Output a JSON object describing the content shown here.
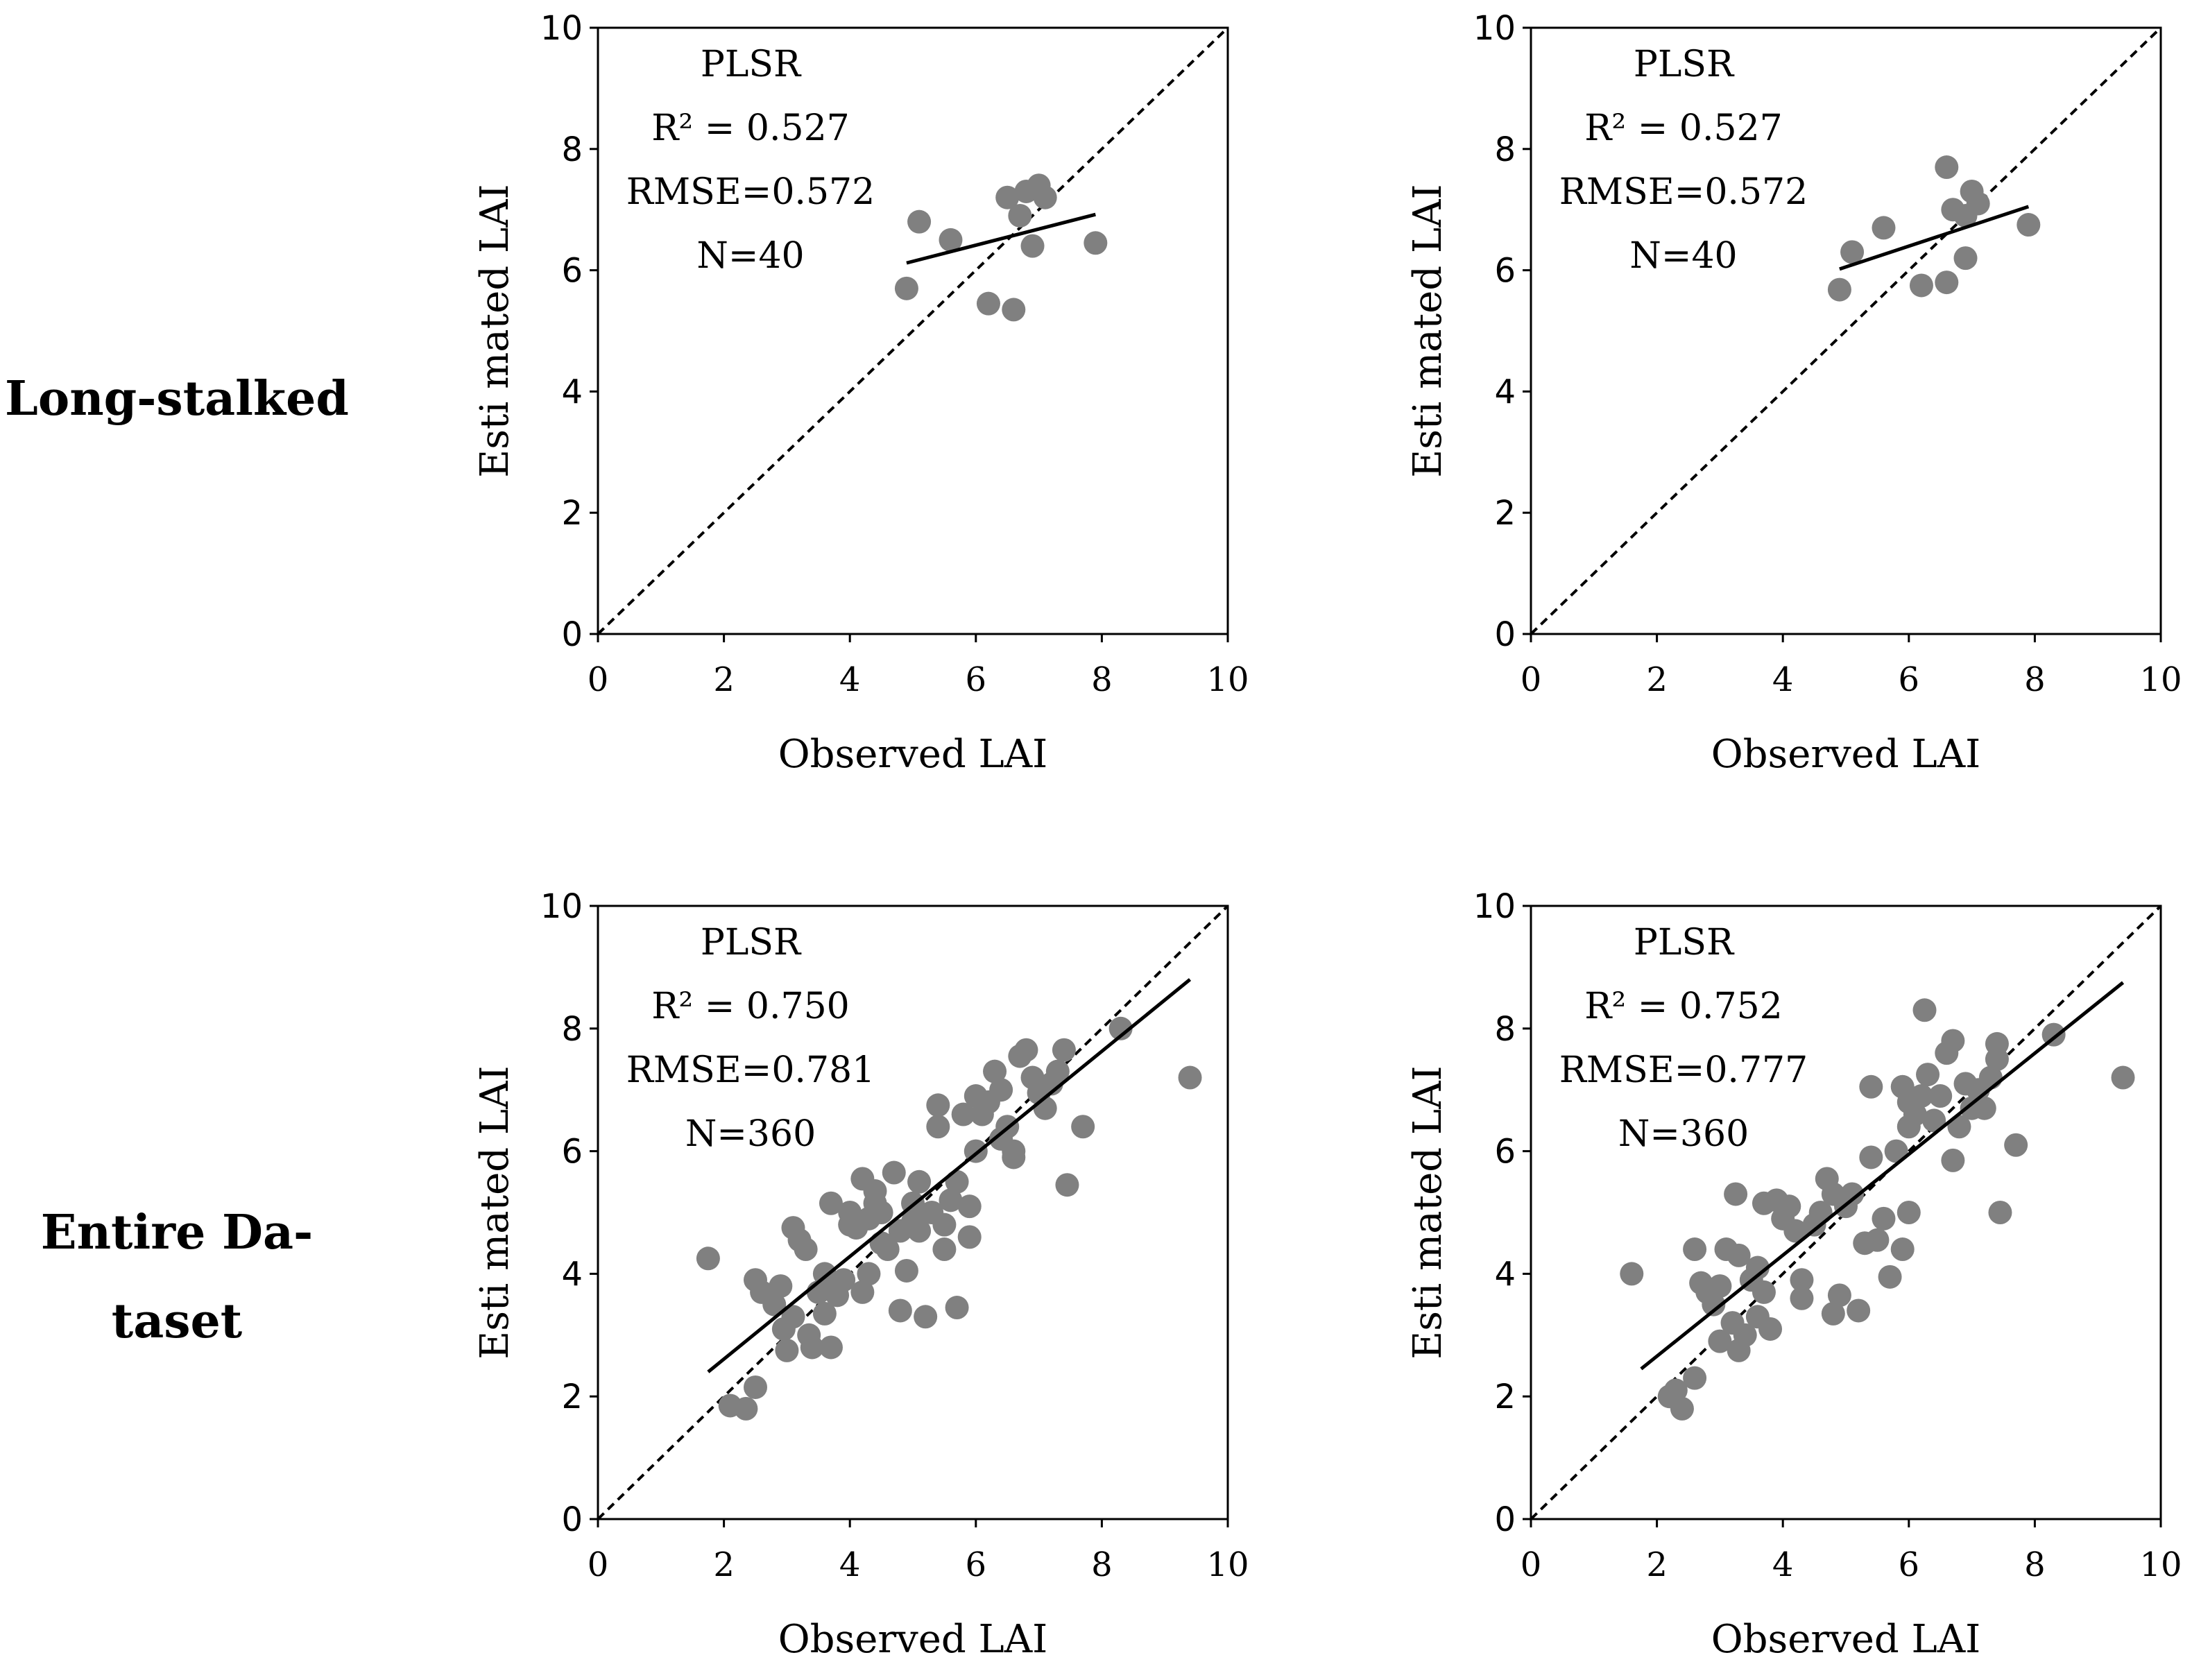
{
  "row_labels": [
    "Long-stalked",
    "Entire Da-",
    "taset"
  ],
  "chart_data": [
    {
      "type": "scatter",
      "xlabel": "Observed LAI",
      "ylabel": "Esti mated LAI",
      "xlim": [
        0,
        10
      ],
      "ylim": [
        0,
        10
      ],
      "xticks": [
        "0",
        "2",
        "4",
        "6",
        "8",
        "10"
      ],
      "yticks": [
        "0",
        "2",
        "4",
        "6",
        "8",
        "10"
      ],
      "one_to_one_line": true,
      "annotation": [
        "PLSR",
        "R² = 0.527",
        "RMSE=0.572",
        "N=40"
      ],
      "fit_line": [
        [
          4.9,
          6.12
        ],
        [
          7.9,
          6.92
        ]
      ],
      "points": [
        [
          4.9,
          5.7
        ],
        [
          5.1,
          6.8
        ],
        [
          5.6,
          6.5
        ],
        [
          6.2,
          5.45
        ],
        [
          6.5,
          7.2
        ],
        [
          6.6,
          5.35
        ],
        [
          6.7,
          6.9
        ],
        [
          6.8,
          7.3
        ],
        [
          6.9,
          6.4
        ],
        [
          7.0,
          7.4
        ],
        [
          7.1,
          7.2
        ],
        [
          7.9,
          6.45
        ]
      ]
    },
    {
      "type": "scatter",
      "xlabel": "Observed LAI",
      "ylabel": "Esti mated LAI",
      "xlim": [
        0,
        10
      ],
      "ylim": [
        0,
        10
      ],
      "xticks": [
        "0",
        "2",
        "4",
        "6",
        "8",
        "10"
      ],
      "yticks": [
        "0",
        "2",
        "4",
        "6",
        "8",
        "10"
      ],
      "one_to_one_line": true,
      "annotation": [
        "PLSR",
        "R² = 0.527",
        "RMSE=0.572",
        "N=40"
      ],
      "fit_line": [
        [
          4.9,
          6.02
        ],
        [
          7.9,
          7.05
        ]
      ],
      "points": [
        [
          4.9,
          5.68
        ],
        [
          5.1,
          6.3
        ],
        [
          5.6,
          6.7
        ],
        [
          6.2,
          5.75
        ],
        [
          6.6,
          7.7
        ],
        [
          6.6,
          5.8
        ],
        [
          6.7,
          7.0
        ],
        [
          6.9,
          6.2
        ],
        [
          6.9,
          6.9
        ],
        [
          7.0,
          7.3
        ],
        [
          7.1,
          7.1
        ],
        [
          7.9,
          6.75
        ]
      ]
    },
    {
      "type": "scatter",
      "xlabel": "Observed LAI",
      "ylabel": "Esti mated LAI",
      "xlim": [
        0,
        10
      ],
      "ylim": [
        0,
        10
      ],
      "xticks": [
        "0",
        "2",
        "4",
        "6",
        "8",
        "10"
      ],
      "yticks": [
        "0",
        "2",
        "4",
        "6",
        "8",
        "10"
      ],
      "one_to_one_line": true,
      "annotation": [
        "PLSR",
        "R² = 0.750",
        "RMSE=0.781",
        "N=360"
      ],
      "fit_line": [
        [
          1.75,
          2.4
        ],
        [
          9.4,
          8.8
        ]
      ],
      "points": [
        [
          1.75,
          4.25
        ],
        [
          2.1,
          1.85
        ],
        [
          2.35,
          1.8
        ],
        [
          2.5,
          2.15
        ],
        [
          2.5,
          3.9
        ],
        [
          2.6,
          3.7
        ],
        [
          2.8,
          3.5
        ],
        [
          2.9,
          3.8
        ],
        [
          2.95,
          3.1
        ],
        [
          3.0,
          2.75
        ],
        [
          3.1,
          3.3
        ],
        [
          3.1,
          4.75
        ],
        [
          3.2,
          4.55
        ],
        [
          3.3,
          4.4
        ],
        [
          3.35,
          3.0
        ],
        [
          3.4,
          2.8
        ],
        [
          3.5,
          3.7
        ],
        [
          3.6,
          3.35
        ],
        [
          3.6,
          4.0
        ],
        [
          3.65,
          3.8
        ],
        [
          3.7,
          2.8
        ],
        [
          3.7,
          5.15
        ],
        [
          3.8,
          3.65
        ],
        [
          3.9,
          3.9
        ],
        [
          4.0,
          4.8
        ],
        [
          4.0,
          5.0
        ],
        [
          4.1,
          4.75
        ],
        [
          4.2,
          3.7
        ],
        [
          4.2,
          5.55
        ],
        [
          4.3,
          4.0
        ],
        [
          4.3,
          4.9
        ],
        [
          4.4,
          5.15
        ],
        [
          4.4,
          5.35
        ],
        [
          4.5,
          4.5
        ],
        [
          4.5,
          5.0
        ],
        [
          4.6,
          4.4
        ],
        [
          4.7,
          5.65
        ],
        [
          4.8,
          4.7
        ],
        [
          4.8,
          3.4
        ],
        [
          4.9,
          4.05
        ],
        [
          5.0,
          4.85
        ],
        [
          5.0,
          5.15
        ],
        [
          5.1,
          4.7
        ],
        [
          5.1,
          5.5
        ],
        [
          5.2,
          3.3
        ],
        [
          5.3,
          5.0
        ],
        [
          5.4,
          6.4
        ],
        [
          5.4,
          6.75
        ],
        [
          5.5,
          4.4
        ],
        [
          5.5,
          4.8
        ],
        [
          5.6,
          5.2
        ],
        [
          5.7,
          5.5
        ],
        [
          5.7,
          3.45
        ],
        [
          5.8,
          6.6
        ],
        [
          5.9,
          4.6
        ],
        [
          5.9,
          5.1
        ],
        [
          6.0,
          6.0
        ],
        [
          6.0,
          6.9
        ],
        [
          6.1,
          6.6
        ],
        [
          6.2,
          6.8
        ],
        [
          6.3,
          7.3
        ],
        [
          6.4,
          6.2
        ],
        [
          6.4,
          7.0
        ],
        [
          6.5,
          6.4
        ],
        [
          6.6,
          5.9
        ],
        [
          6.6,
          6.0
        ],
        [
          6.7,
          7.55
        ],
        [
          6.8,
          7.65
        ],
        [
          6.9,
          7.2
        ],
        [
          7.0,
          6.95
        ],
        [
          7.1,
          6.7
        ],
        [
          7.2,
          7.1
        ],
        [
          7.3,
          7.3
        ],
        [
          7.4,
          7.65
        ],
        [
          7.45,
          5.45
        ],
        [
          7.7,
          6.4
        ],
        [
          8.3,
          8.0
        ],
        [
          9.4,
          7.2
        ]
      ]
    },
    {
      "type": "scatter",
      "xlabel": "Observed LAI",
      "ylabel": "Esti mated LAI",
      "xlim": [
        0,
        10
      ],
      "ylim": [
        0,
        10
      ],
      "xticks": [
        "0",
        "2",
        "4",
        "6",
        "8",
        "10"
      ],
      "yticks": [
        "0",
        "2",
        "4",
        "6",
        "8",
        "10"
      ],
      "one_to_one_line": true,
      "annotation": [
        "PLSR",
        "R² = 0.752",
        "RMSE=0.777",
        "N=360"
      ],
      "fit_line": [
        [
          1.75,
          2.45
        ],
        [
          9.4,
          8.75
        ]
      ],
      "points": [
        [
          1.6,
          4.0
        ],
        [
          2.2,
          2.0
        ],
        [
          2.3,
          2.1
        ],
        [
          2.4,
          1.8
        ],
        [
          2.6,
          2.3
        ],
        [
          2.6,
          4.4
        ],
        [
          2.7,
          3.85
        ],
        [
          2.8,
          3.7
        ],
        [
          2.9,
          3.5
        ],
        [
          3.0,
          3.8
        ],
        [
          3.0,
          2.9
        ],
        [
          3.1,
          4.4
        ],
        [
          3.2,
          3.2
        ],
        [
          3.25,
          5.3
        ],
        [
          3.3,
          2.75
        ],
        [
          3.3,
          4.3
        ],
        [
          3.4,
          3.0
        ],
        [
          3.5,
          3.9
        ],
        [
          3.6,
          3.3
        ],
        [
          3.6,
          4.1
        ],
        [
          3.7,
          5.15
        ],
        [
          3.7,
          3.7
        ],
        [
          3.8,
          3.1
        ],
        [
          3.9,
          5.2
        ],
        [
          4.0,
          4.9
        ],
        [
          4.1,
          5.1
        ],
        [
          4.2,
          4.7
        ],
        [
          4.3,
          3.6
        ],
        [
          4.3,
          3.9
        ],
        [
          4.5,
          4.8
        ],
        [
          4.6,
          5.0
        ],
        [
          4.7,
          5.55
        ],
        [
          4.8,
          5.3
        ],
        [
          4.8,
          3.35
        ],
        [
          4.9,
          3.65
        ],
        [
          5.0,
          5.1
        ],
        [
          5.1,
          5.3
        ],
        [
          5.2,
          3.4
        ],
        [
          5.3,
          4.5
        ],
        [
          5.4,
          7.05
        ],
        [
          5.4,
          5.9
        ],
        [
          5.5,
          4.55
        ],
        [
          5.6,
          4.9
        ],
        [
          5.7,
          3.95
        ],
        [
          5.8,
          6.0
        ],
        [
          5.9,
          7.05
        ],
        [
          5.9,
          4.4
        ],
        [
          6.0,
          6.8
        ],
        [
          6.0,
          5.0
        ],
        [
          6.0,
          6.4
        ],
        [
          6.1,
          6.6
        ],
        [
          6.2,
          6.9
        ],
        [
          6.25,
          8.3
        ],
        [
          6.3,
          7.25
        ],
        [
          6.4,
          6.5
        ],
        [
          6.5,
          6.9
        ],
        [
          6.6,
          7.6
        ],
        [
          6.7,
          7.8
        ],
        [
          6.7,
          5.85
        ],
        [
          6.8,
          6.4
        ],
        [
          6.9,
          7.1
        ],
        [
          7.0,
          6.7
        ],
        [
          7.1,
          7.0
        ],
        [
          7.2,
          6.7
        ],
        [
          7.3,
          7.2
        ],
        [
          7.4,
          7.5
        ],
        [
          7.4,
          7.75
        ],
        [
          7.45,
          5.0
        ],
        [
          7.7,
          6.1
        ],
        [
          8.3,
          7.9
        ],
        [
          9.4,
          7.2
        ]
      ]
    }
  ]
}
